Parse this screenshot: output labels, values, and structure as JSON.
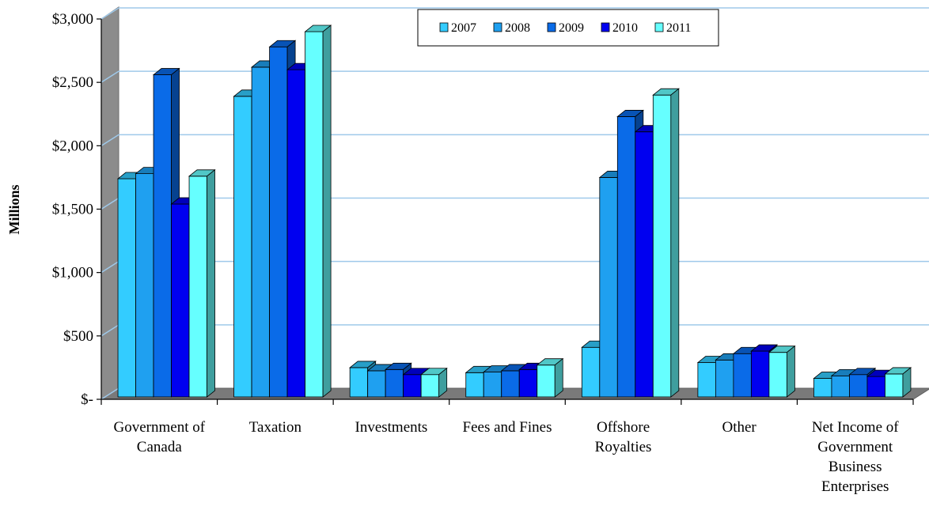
{
  "chart_data": {
    "type": "bar",
    "title": "",
    "xlabel": "",
    "ylabel": "Millions",
    "ylim": [
      0,
      3000
    ],
    "y_ticks": [
      0,
      500,
      1000,
      1500,
      2000,
      2500,
      3000
    ],
    "y_tick_labels": [
      "$-",
      "$500",
      "$1,000",
      "$1,500",
      "$2,000",
      "$2,500",
      "$3,000"
    ],
    "categories": [
      "Government of Canada",
      "Taxation",
      "Investments",
      "Fees and Fines",
      "Offshore Royalties",
      "Other",
      "Net Income of Government Business Enterprises"
    ],
    "category_label_lines": [
      [
        "Government of",
        "Canada"
      ],
      [
        "Taxation"
      ],
      [
        "Investments"
      ],
      [
        "Fees and Fines"
      ],
      [
        "Offshore",
        "Royalties"
      ],
      [
        "Other"
      ],
      [
        "Net Income of",
        "Government",
        "Business",
        "Enterprises"
      ]
    ],
    "series": [
      {
        "name": "2007",
        "color": "#33CCFF",
        "values": [
          1740,
          2390,
          250,
          210,
          410,
          290,
          165
        ]
      },
      {
        "name": "2008",
        "color": "#1FA0F0",
        "values": [
          1780,
          2620,
          225,
          215,
          1750,
          310,
          185
        ]
      },
      {
        "name": "2009",
        "color": "#0A6BE8",
        "values": [
          2560,
          2780,
          235,
          225,
          2230,
          360,
          195
        ]
      },
      {
        "name": "2010",
        "color": "#0000F0",
        "values": [
          1540,
          2600,
          195,
          235,
          2110,
          380,
          180
        ]
      },
      {
        "name": "2011",
        "color": "#66FFFF",
        "values": [
          1760,
          2900,
          195,
          270,
          2400,
          370,
          200
        ]
      }
    ],
    "grid": true,
    "legend_position": "top-right",
    "style": "3d-clustered-column"
  }
}
